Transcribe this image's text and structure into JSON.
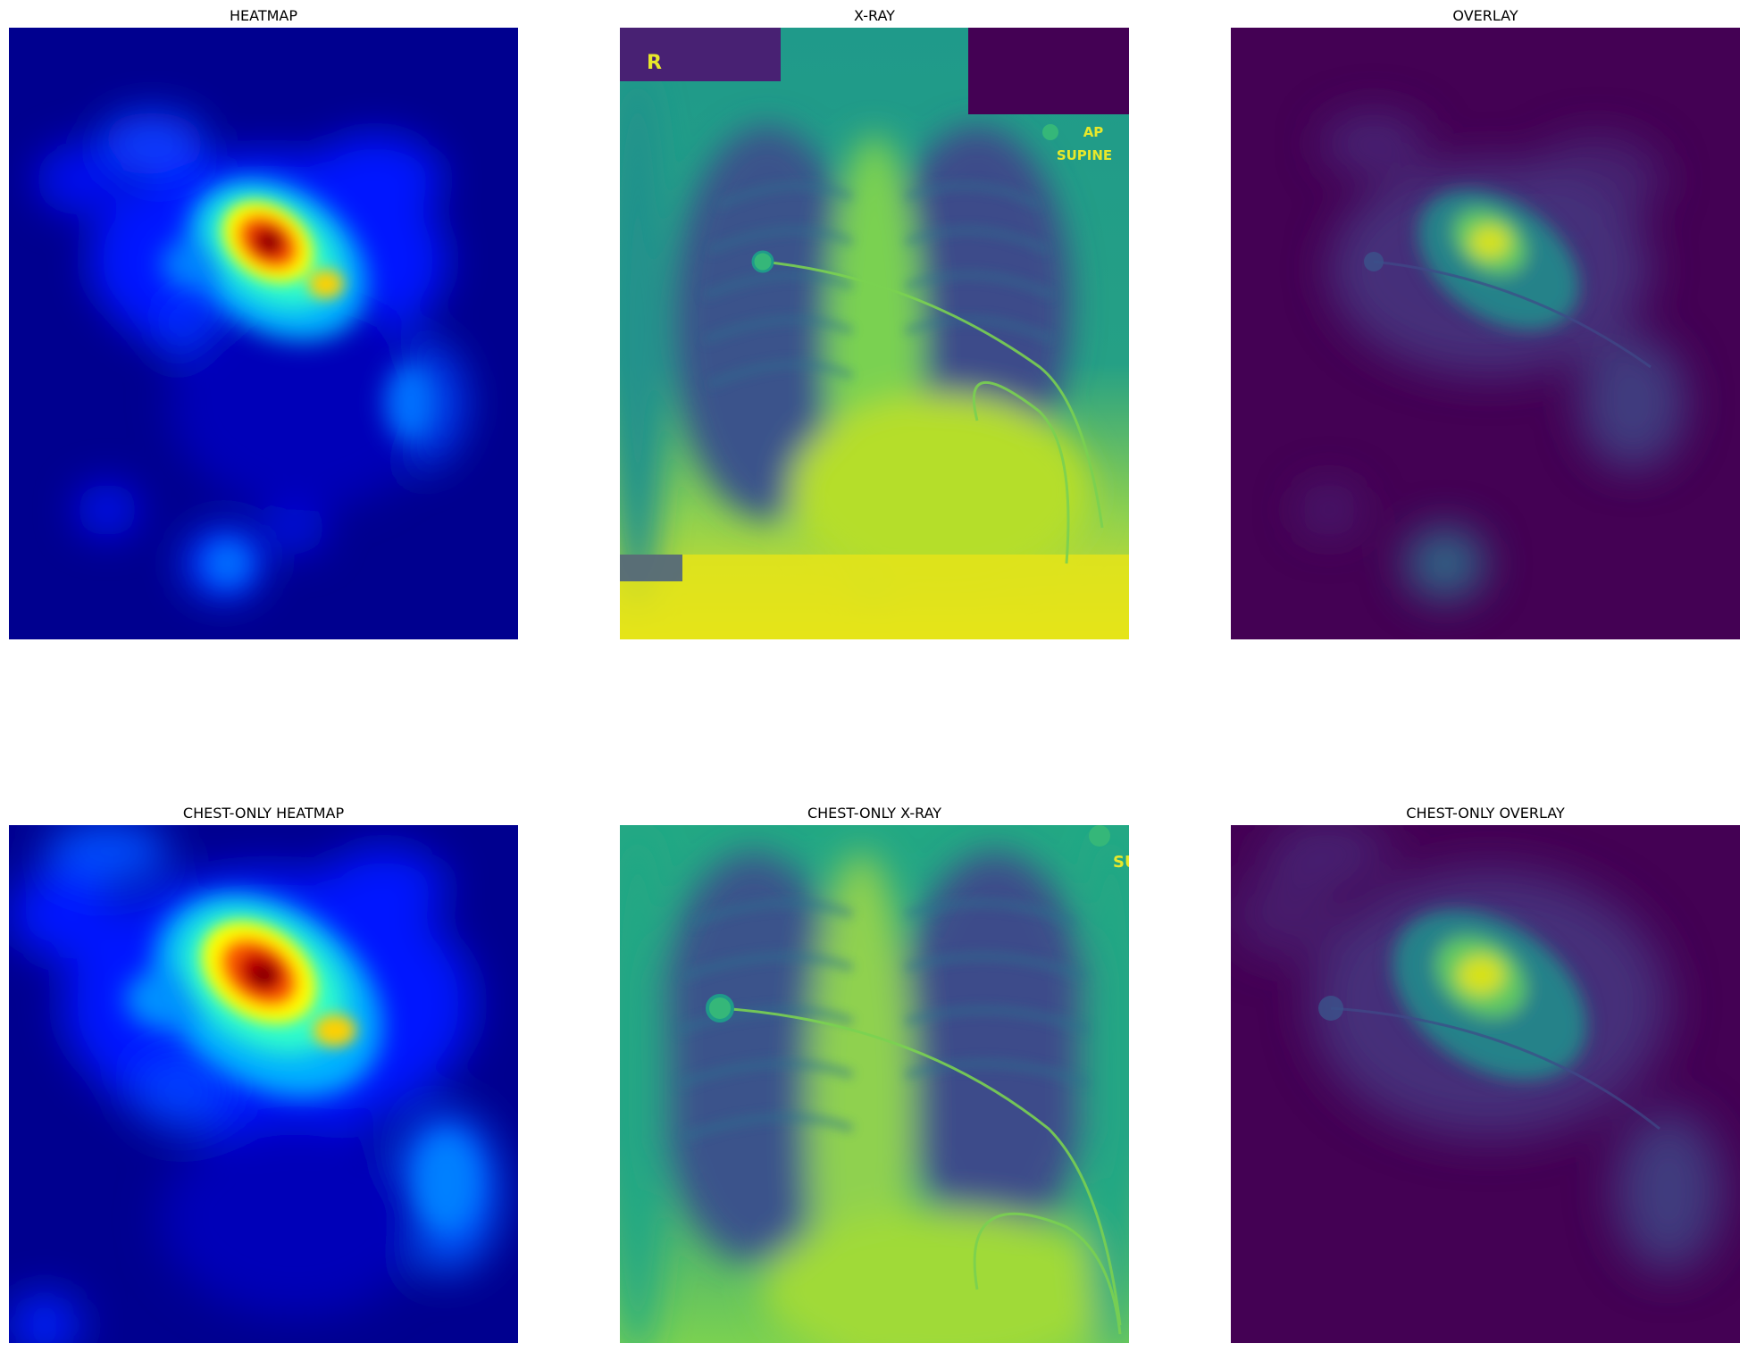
{
  "panels": [
    {
      "title": "HEATMAP"
    },
    {
      "title": "X-RAY"
    },
    {
      "title": "OVERLAY"
    },
    {
      "title": "CHEST-ONLY HEATMAP"
    },
    {
      "title": "CHEST-ONLY X-RAY"
    },
    {
      "title": "CHEST-ONLY OVERLAY"
    }
  ],
  "xray_labels": {
    "projection": "AP",
    "position": "SUPINE",
    "side_marker": "R",
    "cropped_fragment": "SU"
  },
  "colors": {
    "jet_low": "#00008f",
    "jet_high": "#800000",
    "viridis_low": "#440154",
    "viridis_high": "#fde725",
    "annotation_yellow": "#e8e82a"
  }
}
